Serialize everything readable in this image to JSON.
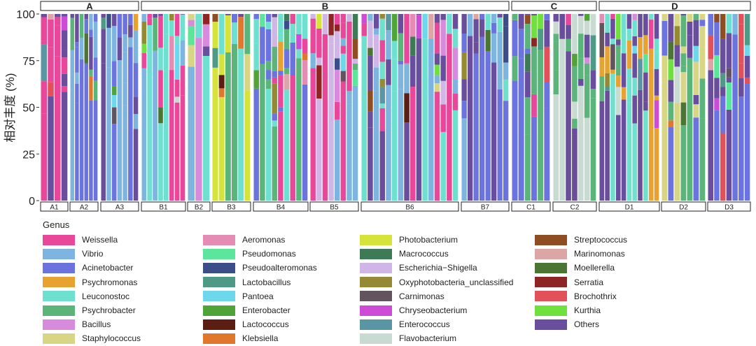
{
  "chart_data": {
    "type": "bar",
    "stacked": true,
    "ylabel": "相对丰度 (%)",
    "ylim": [
      0,
      100
    ],
    "yticks": [
      "0",
      "25",
      "50",
      "75",
      "100"
    ],
    "groups": [
      {
        "label": "A",
        "subgroups": [
          {
            "label": "A1",
            "n": 4
          },
          {
            "label": "A2",
            "n": 6
          },
          {
            "label": "A3",
            "n": 7
          }
        ]
      },
      {
        "label": "B",
        "subgroups": [
          {
            "label": "B1",
            "n": 8
          },
          {
            "label": "B2",
            "n": 3
          },
          {
            "label": "B3",
            "n": 6
          },
          {
            "label": "B4",
            "n": 9
          },
          {
            "label": "B5",
            "n": 8
          },
          {
            "label": "B6",
            "n": 16
          },
          {
            "label": "B7",
            "n": 8
          }
        ]
      },
      {
        "label": "C",
        "subgroups": [
          {
            "label": "C1",
            "n": 6
          },
          {
            "label": "C2",
            "n": 7
          }
        ]
      },
      {
        "label": "D",
        "subgroups": [
          {
            "label": "D1",
            "n": 11
          },
          {
            "label": "D2",
            "n": 7
          },
          {
            "label": "D3",
            "n": 7
          }
        ]
      }
    ],
    "series_note": "stacked genus relative abundance per sample; values estimated",
    "legend_title": "Genus",
    "legend": [
      {
        "name": "Weissella",
        "color": "#E8479A"
      },
      {
        "name": "Vibrio",
        "color": "#7DB4E0"
      },
      {
        "name": "Acinetobacter",
        "color": "#6B73DE"
      },
      {
        "name": "Psychromonas",
        "color": "#E8A232"
      },
      {
        "name": "Leuconostoc",
        "color": "#6DE0CF"
      },
      {
        "name": "Psychrobacter",
        "color": "#5BB57A"
      },
      {
        "name": "Bacillus",
        "color": "#D88BDD"
      },
      {
        "name": "Staphylococcus",
        "color": "#D8D685"
      },
      {
        "name": "Aeromonas",
        "color": "#E58CB4"
      },
      {
        "name": "Pseudomonas",
        "color": "#5CE69C"
      },
      {
        "name": "Pseudoalteromonas",
        "color": "#3B4E8A"
      },
      {
        "name": "Lactobacillus",
        "color": "#4F9A86"
      },
      {
        "name": "Pantoea",
        "color": "#6DD8EB"
      },
      {
        "name": "Enterobacter",
        "color": "#4FA337"
      },
      {
        "name": "Lactococcus",
        "color": "#5A1E12"
      },
      {
        "name": "Klebsiella",
        "color": "#E0782C"
      },
      {
        "name": "Photobacterium",
        "color": "#D6E33B"
      },
      {
        "name": "Macrococcus",
        "color": "#3F7A57"
      },
      {
        "name": "Escherichia−Shigella",
        "color": "#CFB6E6"
      },
      {
        "name": "Oxyphotobacteria_unclassified",
        "color": "#958A33"
      },
      {
        "name": "Carnimonas",
        "color": "#62535E"
      },
      {
        "name": "Chryseobacterium",
        "color": "#CE4BD8"
      },
      {
        "name": "Enterococcus",
        "color": "#5A95A3"
      },
      {
        "name": "Flavobacterium",
        "color": "#C9DAD2"
      },
      {
        "name": "Streptococcus",
        "color": "#8E4E22"
      },
      {
        "name": "Marinomonas",
        "color": "#DDA6A6"
      },
      {
        "name": "Moellerella",
        "color": "#4A7532"
      },
      {
        "name": "Serratia",
        "color": "#8E2424"
      },
      {
        "name": "Brochothrix",
        "color": "#E2505A"
      },
      {
        "name": "Kurthia",
        "color": "#6EE13D"
      },
      {
        "name": "Others",
        "color": "#6A4E9E"
      }
    ]
  }
}
